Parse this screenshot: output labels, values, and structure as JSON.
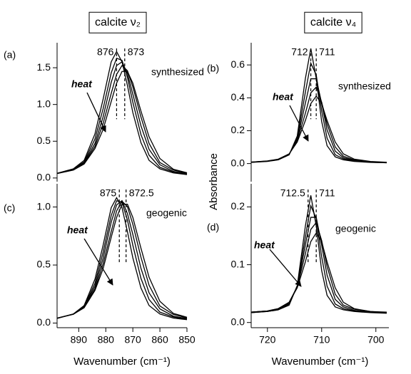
{
  "chart_data": [
    {
      "type": "line",
      "title": "calcite ν₂",
      "label": "(a)",
      "annotation": "synthesized",
      "arrow_label": "heat",
      "markers": [
        876,
        873
      ],
      "color": "#000000",
      "xlim": [
        898,
        850
      ],
      "ylim": [
        -0.05,
        1.84
      ],
      "yticks": [
        {
          "value": 0,
          "label": "0.0"
        },
        0.5,
        {
          "value": 1,
          "label": "1.0"
        },
        1.5
      ],
      "x": [
        898,
        892,
        888,
        884,
        881,
        878,
        876,
        874,
        872,
        870,
        867,
        864,
        860,
        855,
        850
      ],
      "series": [
        {
          "values": [
            0.064,
            0.124,
            0.24,
            0.6,
            1.07,
            1.58,
            1.72,
            1.58,
            1.26,
            0.89,
            0.48,
            0.24,
            0.124,
            0.069,
            0.046
          ]
        },
        {
          "values": [
            0.063,
            0.119,
            0.22,
            0.53,
            0.94,
            1.43,
            1.63,
            1.6,
            1.37,
            1.03,
            0.59,
            0.31,
            0.145,
            0.081,
            0.051
          ]
        },
        {
          "values": [
            0.062,
            0.116,
            0.21,
            0.47,
            0.83,
            1.3,
            1.53,
            1.58,
            1.42,
            1.14,
            0.71,
            0.39,
            0.18,
            0.089,
            0.057
          ]
        },
        {
          "values": [
            0.061,
            0.11,
            0.2,
            0.43,
            0.74,
            1.15,
            1.41,
            1.53,
            1.46,
            1.24,
            0.83,
            0.47,
            0.21,
            0.107,
            0.064
          ]
        },
        {
          "values": [
            0.06,
            0.107,
            0.19,
            0.4,
            0.66,
            1.04,
            1.29,
            1.45,
            1.45,
            1.29,
            0.91,
            0.56,
            0.265,
            0.118,
            0.071
          ]
        }
      ]
    },
    {
      "type": "line",
      "title": "calcite ν₄",
      "label": "(b)",
      "annotation": "synthesized",
      "arrow_label": "heat",
      "y_label": "Absorbance",
      "markers": [
        712,
        711
      ],
      "color": "#000000",
      "xlim": [
        723,
        697.6
      ],
      "ylim": [
        -0.11,
        0.735
      ],
      "yticks": [
        {
          "value": 0,
          "label": "0.0"
        },
        0.2,
        0.4,
        0.6
      ],
      "x": [
        723,
        720,
        718,
        716,
        714.5,
        713,
        712,
        711,
        710,
        709,
        707.5,
        706,
        704,
        701,
        698
      ],
      "series": [
        {
          "values": [
            0.007,
            0.013,
            0.023,
            0.053,
            0.168,
            0.518,
            0.7,
            0.518,
            0.256,
            0.109,
            0.041,
            0.023,
            0.013,
            0.007,
            0.005
          ]
        },
        {
          "values": [
            0.008,
            0.014,
            0.024,
            0.054,
            0.155,
            0.434,
            0.611,
            0.539,
            0.322,
            0.155,
            0.054,
            0.029,
            0.016,
            0.008,
            0.005
          ]
        },
        {
          "values": [
            0.008,
            0.015,
            0.025,
            0.056,
            0.146,
            0.367,
            0.516,
            0.516,
            0.367,
            0.205,
            0.076,
            0.036,
            0.019,
            0.01,
            0.006
          ]
        },
        {
          "values": [
            0.009,
            0.015,
            0.025,
            0.058,
            0.139,
            0.306,
            0.43,
            0.465,
            0.374,
            0.24,
            0.101,
            0.045,
            0.022,
            0.011,
            0.007
          ]
        },
        {
          "values": [
            0.009,
            0.016,
            0.027,
            0.059,
            0.131,
            0.262,
            0.365,
            0.41,
            0.365,
            0.262,
            0.131,
            0.059,
            0.027,
            0.013,
            0.008
          ]
        }
      ]
    },
    {
      "type": "line",
      "label": "(c)",
      "annotation": "geogenic",
      "arrow_label": "heat",
      "x_label": "Wavenumber (cm⁻¹)",
      "markers": [
        875,
        872.5
      ],
      "color": "#000000",
      "xlim": [
        898,
        850
      ],
      "ylim": [
        -0.04,
        1.2
      ],
      "xticks": [
        890,
        880,
        870,
        860,
        850
      ],
      "yticks": [
        {
          "value": 0,
          "label": "0.0"
        },
        0.5,
        {
          "value": 1,
          "label": "1.0"
        }
      ],
      "x": [
        898,
        892,
        888,
        884,
        881,
        878,
        876,
        874,
        872,
        870,
        867,
        864,
        860,
        855,
        850
      ],
      "series": [
        {
          "values": [
            0.04,
            0.078,
            0.151,
            0.378,
            0.67,
            0.994,
            1.08,
            0.994,
            0.788,
            0.562,
            0.302,
            0.151,
            0.078,
            0.043,
            0.029
          ]
        },
        {
          "values": [
            0.041,
            0.077,
            0.144,
            0.342,
            0.61,
            0.926,
            1.054,
            1.038,
            0.888,
            0.67,
            0.385,
            0.203,
            0.094,
            0.052,
            0.033
          ]
        },
        {
          "values": [
            0.041,
            0.077,
            0.14,
            0.316,
            0.557,
            0.869,
            1.018,
            1.055,
            0.943,
            0.763,
            0.472,
            0.26,
            0.122,
            0.059,
            0.038
          ]
        },
        {
          "values": [
            0.042,
            0.076,
            0.137,
            0.294,
            0.509,
            0.788,
            0.966,
            1.05,
            1.003,
            0.851,
            0.567,
            0.326,
            0.147,
            0.074,
            0.044
          ]
        },
        {
          "values": [
            0.043,
            0.076,
            0.132,
            0.281,
            0.468,
            0.738,
            0.91,
            1.024,
            1.024,
            0.91,
            0.645,
            0.395,
            0.187,
            0.083,
            0.05
          ]
        }
      ]
    },
    {
      "type": "line",
      "label": "(d)",
      "annotation": "geogenic",
      "arrow_label": "heat",
      "x_label": "Wavenumber (cm⁻¹)",
      "markers": [
        712.5,
        711
      ],
      "color": "#000000",
      "xlim": [
        723,
        697.6
      ],
      "ylim": [
        -0.009,
        0.24
      ],
      "xticks": [
        720,
        710,
        700
      ],
      "yticks": [
        {
          "value": 0,
          "label": "0.0"
        },
        0.1,
        0.2
      ],
      "x": [
        723,
        720,
        718,
        716,
        714.5,
        713,
        712,
        711,
        710,
        709,
        707.5,
        706,
        704,
        701,
        698
      ],
      "series": [
        {
          "values": [
            0.017,
            0.019,
            0.022,
            0.03,
            0.064,
            0.167,
            0.22,
            0.167,
            0.09,
            0.047,
            0.027,
            0.022,
            0.019,
            0.017,
            0.016
          ]
        },
        {
          "values": [
            0.017,
            0.019,
            0.022,
            0.032,
            0.063,
            0.148,
            0.202,
            0.18,
            0.114,
            0.063,
            0.032,
            0.024,
            0.02,
            0.018,
            0.017
          ]
        },
        {
          "values": [
            0.018,
            0.02,
            0.023,
            0.033,
            0.062,
            0.134,
            0.182,
            0.182,
            0.134,
            0.082,
            0.04,
            0.027,
            0.021,
            0.018,
            0.017
          ]
        },
        {
          "values": [
            0.018,
            0.02,
            0.024,
            0.035,
            0.062,
            0.119,
            0.161,
            0.173,
            0.142,
            0.097,
            0.049,
            0.03,
            0.023,
            0.019,
            0.017
          ]
        },
        {
          "values": [
            0.018,
            0.02,
            0.024,
            0.035,
            0.06,
            0.105,
            0.14,
            0.155,
            0.14,
            0.105,
            0.06,
            0.035,
            0.024,
            0.019,
            0.018
          ]
        }
      ]
    }
  ]
}
